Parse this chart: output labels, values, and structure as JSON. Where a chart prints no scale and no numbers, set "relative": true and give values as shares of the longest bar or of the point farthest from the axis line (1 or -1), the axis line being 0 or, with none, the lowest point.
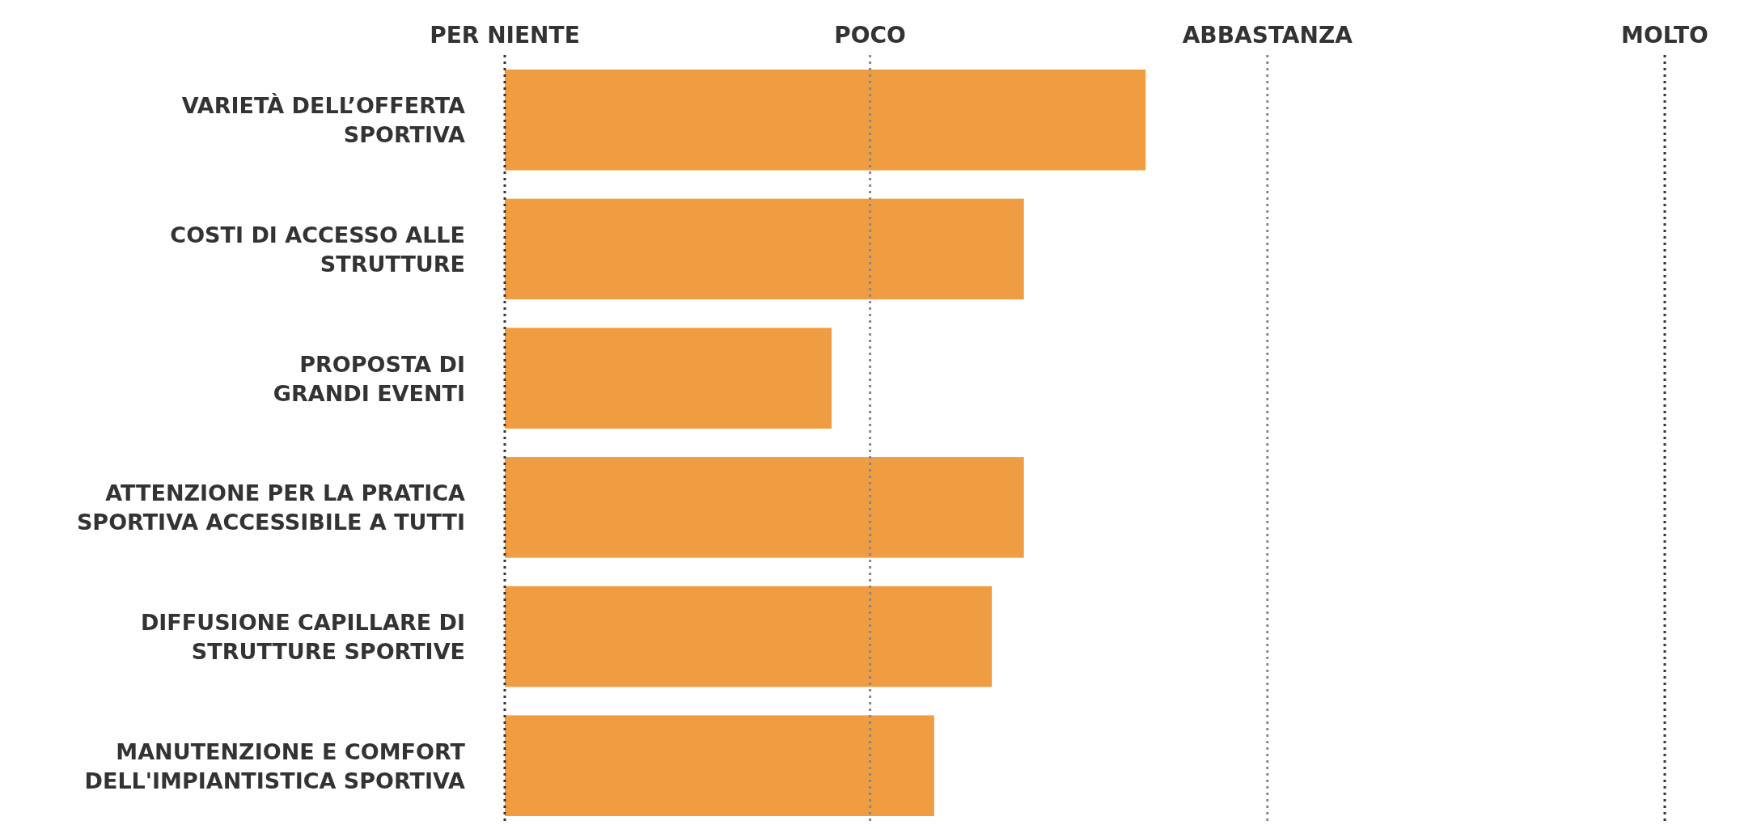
{
  "chart_data": {
    "type": "bar",
    "orientation": "horizontal",
    "relative": true,
    "categories": [
      "VARIETÀ DELL’OFFERTA\nSPORTIVA",
      "COSTI DI ACCESSO ALLE\nSTRUTTURE",
      "PROPOSTA DI\nGRANDI EVENTI",
      "ATTENZIONE PER LA PRATICA\nSPORTIVA ACCESSIBILE A TUTTI",
      "DIFFUSIONE CAPILLARE DI\nSTRUTTURE SPORTIVE",
      "MANUTENZIONE E COMFORT\nDELL'IMPIANTISTICA SPORTIVA"
    ],
    "values": [
      1,
      0.81,
      0.51,
      0.81,
      0.76,
      0.67
    ],
    "color": "#f09c40",
    "ref_lines": [
      {
        "axis": "x",
        "value": 0,
        "label": "PER NIENTE",
        "color": "#333333",
        "line_style": "dotted"
      },
      {
        "axis": "x",
        "value": 0.57,
        "label": "POCO",
        "color": "#888888",
        "line_style": "dotted"
      },
      {
        "axis": "x",
        "value": 1.19,
        "label": "ABBASTANZA",
        "color": "#888888",
        "line_style": "dotted"
      },
      {
        "axis": "x",
        "value": 1.81,
        "label": "MOLTO",
        "color": "#333333",
        "line_style": "dotted"
      }
    ]
  }
}
